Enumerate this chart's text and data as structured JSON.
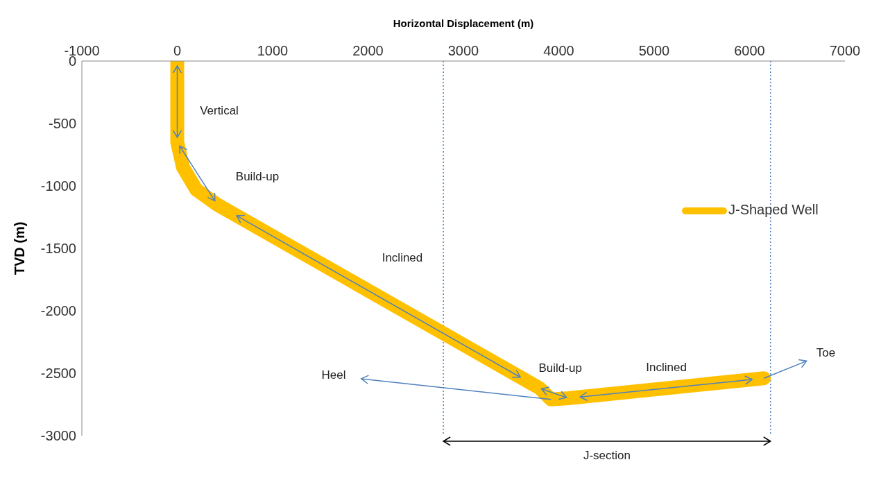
{
  "chart_data": {
    "type": "line",
    "xlabel": "Horizontal Displacement (m)",
    "ylabel": "TVD (m)",
    "x": [
      0,
      0,
      60,
      200,
      420,
      3800,
      3920,
      4100,
      6150
    ],
    "series": [
      {
        "name": "J-Shaped Well",
        "color": "#ffc000",
        "values": [
          0,
          -650,
          -850,
          -1030,
          -1150,
          -2620,
          -2710,
          -2700,
          -2540
        ]
      }
    ],
    "xlim": [
      -1000,
      7000
    ],
    "xticks": [
      -1000,
      0,
      1000,
      2000,
      3000,
      4000,
      5000,
      6000,
      7000
    ],
    "ylim": [
      -3000,
      0
    ],
    "yticks": [
      -3000,
      -2500,
      -2000,
      -1500,
      -1000,
      -500,
      0
    ],
    "legend": "right",
    "ref_lines": [
      {
        "axis": "x",
        "value": 2790,
        "color": "#4f81bd",
        "line_style": "dotted"
      },
      {
        "axis": "x",
        "value": 6220,
        "color": "#4f81bd",
        "line_style": "dotted"
      }
    ],
    "annotations": [
      "Vertical",
      "Build-up",
      "Inclined",
      "Heel",
      "Build-up",
      "Inclined",
      {
        "text": "Toe",
        "x": 6150,
        "y": -2540
      },
      "J-section"
    ]
  }
}
